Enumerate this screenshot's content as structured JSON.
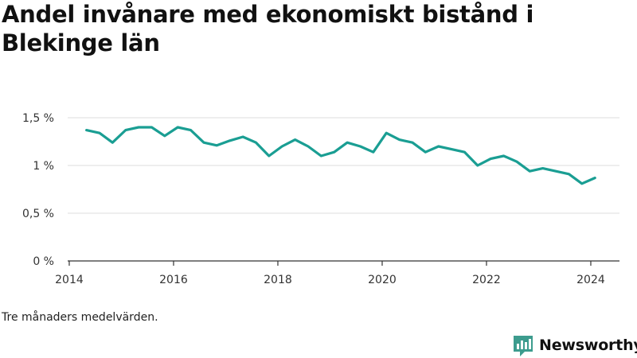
{
  "title": "Andel invånare med ekonomiskt bistånd i Blekinge län",
  "footnote": "Tre månaders medelvärden.",
  "brand": {
    "name": "Newsworthy",
    "color": "#3d9c8e",
    "icon": "newsworthy-logo-icon"
  },
  "colors": {
    "line": "#1a9e93",
    "grid": "#dddddd",
    "axis": "#333333",
    "text": "#333333"
  },
  "chart_data": {
    "type": "line",
    "title": "Andel invånare med ekonomiskt bistånd i Blekinge län",
    "xlabel": "",
    "ylabel": "",
    "xlim": [
      2013.97,
      2024.55
    ],
    "ylim": [
      0,
      1.5
    ],
    "x_ticks": [
      2014,
      2016,
      2018,
      2020,
      2022,
      2024
    ],
    "x_tick_labels": [
      "2014",
      "2016",
      "2018",
      "2020",
      "2022",
      "2024"
    ],
    "y_ticks": [
      0,
      0.5,
      1,
      1.5
    ],
    "y_tick_labels": [
      "0 %",
      "0,5 %",
      "1 %",
      "1,5 %"
    ],
    "grid": true,
    "series": [
      {
        "x": [
          2014.33,
          2014.58,
          2014.83,
          2015.08,
          2015.33,
          2015.58,
          2015.83,
          2016.08,
          2016.33,
          2016.58,
          2016.83,
          2017.08,
          2017.33,
          2017.58,
          2017.83,
          2018.08,
          2018.33,
          2018.58,
          2018.83,
          2019.08,
          2019.33,
          2019.58,
          2019.83,
          2020.08,
          2020.33,
          2020.58,
          2020.83,
          2021.08,
          2021.33,
          2021.58,
          2021.83,
          2022.08,
          2022.33,
          2022.58,
          2022.83,
          2023.08,
          2023.33,
          2023.58,
          2023.83,
          2024.08
        ],
        "values": [
          1.37,
          1.34,
          1.24,
          1.37,
          1.4,
          1.4,
          1.31,
          1.4,
          1.37,
          1.24,
          1.21,
          1.26,
          1.3,
          1.24,
          1.1,
          1.2,
          1.27,
          1.2,
          1.1,
          1.14,
          1.24,
          1.2,
          1.14,
          1.34,
          1.27,
          1.24,
          1.14,
          1.2,
          1.17,
          1.14,
          1.0,
          1.07,
          1.1,
          1.04,
          0.94,
          0.97,
          0.94,
          0.91,
          0.81,
          0.87
        ]
      }
    ]
  }
}
